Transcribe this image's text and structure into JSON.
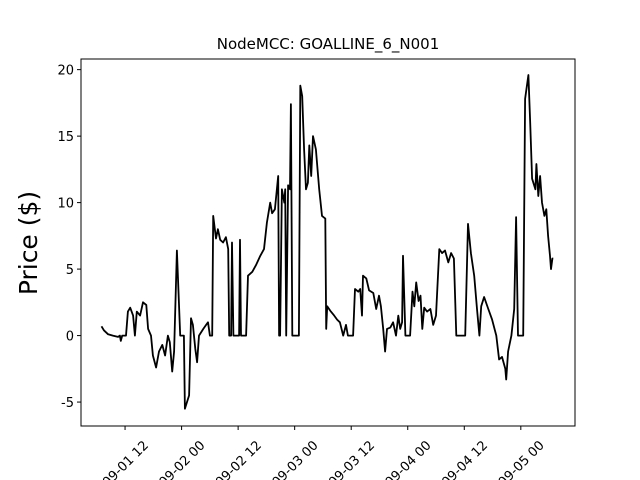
{
  "chart_data": {
    "type": "line",
    "title": "NodeMCC: GOALLINE_6_N001",
    "y_label": "Price ($)",
    "color": "#000000",
    "x": [
      7.0,
      7.5,
      8.4,
      9.4,
      10.5,
      10.9,
      11.1,
      11.4,
      12.2,
      12.6,
      13.1,
      13.7,
      14.1,
      14.5,
      15.2,
      15.8,
      16.5,
      16.9,
      17.5,
      17.9,
      18.6,
      19.2,
      19.9,
      20.5,
      21.1,
      21.5,
      22.0,
      22.4,
      23.0,
      23.7,
      24.5,
      24.7,
      25.6,
      26.0,
      26.4,
      26.9,
      27.3,
      27.7,
      28.6,
      29.2,
      29.6,
      30.0,
      30.5,
      30.7,
      31.3,
      31.7,
      32.2,
      32.8,
      33.4,
      33.9,
      34.1,
      34.5,
      34.7,
      35.0,
      36.2,
      36.4,
      36.6,
      37.7,
      38.1,
      39.0,
      39.8,
      40.7,
      41.5,
      42.1,
      42.8,
      43.2,
      43.8,
      44.5,
      44.7,
      44.9,
      45.3,
      45.8,
      46.0,
      46.2,
      46.6,
      47.0,
      47.2,
      47.5,
      48.9,
      49.2,
      49.6,
      50.0,
      50.4,
      50.8,
      51.1,
      51.5,
      51.9,
      52.5,
      53.2,
      53.8,
      54.5,
      54.7,
      54.9,
      55.7,
      56.4,
      57.0,
      57.6,
      58.3,
      58.9,
      59.3,
      60.4,
      60.8,
      61.5,
      61.9,
      62.3,
      62.5,
      63.2,
      63.8,
      64.7,
      65.3,
      65.9,
      66.3,
      66.8,
      67.2,
      67.6,
      68.3,
      68.9,
      69.5,
      70.0,
      70.4,
      70.8,
      71.0,
      71.5,
      72.5,
      73.0,
      73.4,
      73.8,
      74.3,
      74.7,
      75.1,
      75.5,
      76.1,
      76.8,
      77.4,
      78.0,
      78.7,
      79.3,
      79.9,
      80.6,
      81.2,
      81.8,
      82.3,
      84.2,
      84.8,
      85.4,
      86.1,
      86.7,
      87.2,
      87.6,
      88.2,
      89.1,
      89.9,
      90.8,
      91.4,
      92.0,
      92.7,
      92.9,
      93.3,
      94.0,
      94.6,
      95.0,
      95.4,
      96.5,
      96.9,
      97.6,
      98.0,
      98.4,
      99.1,
      99.3,
      99.7,
      100.1,
      100.5,
      101.0,
      101.4,
      101.8,
      102.2,
      102.4,
      102.7,
      102.9
    ],
    "values": [
      0.7,
      0.4,
      0.1,
      0,
      -0.1,
      0,
      -0.4,
      0,
      0,
      1.8,
      2.1,
      1.5,
      0,
      1.8,
      1.5,
      2.5,
      2.3,
      0.5,
      0,
      -1.5,
      -2.4,
      -1.2,
      -0.7,
      -1.5,
      0,
      -0.5,
      -2.7,
      -1.2,
      6.4,
      0,
      0,
      -5.5,
      -4.5,
      1.3,
      0.8,
      -1,
      -2,
      0,
      0.5,
      0.8,
      1,
      0,
      0,
      9,
      7.3,
      8,
      7.2,
      7,
      7.4,
      6.5,
      0,
      0,
      7,
      0,
      0,
      7.2,
      0,
      0,
      4.5,
      4.8,
      5.3,
      6,
      6.5,
      8.5,
      10,
      9.2,
      9.5,
      12,
      0,
      0,
      11,
      10,
      11,
      0,
      11.3,
      11,
      17.4,
      0,
      0,
      18.8,
      18,
      14,
      11,
      11.5,
      14.3,
      12,
      15,
      14,
      11,
      9,
      8.8,
      0.5,
      2.2,
      1.8,
      1.5,
      1.2,
      1,
      0,
      0.8,
      0,
      0,
      3.5,
      3.3,
      3.5,
      1.5,
      4.5,
      4.3,
      3.4,
      3.2,
      2,
      3,
      2.2,
      0.5,
      -1.2,
      0.5,
      0.6,
      1,
      0,
      1.5,
      0.5,
      1,
      6,
      0,
      0,
      3.3,
      2.2,
      4,
      2.6,
      3,
      0.5,
      2.1,
      1.8,
      2,
      0.8,
      1.5,
      6.5,
      6.2,
      6.4,
      5.5,
      6.2,
      5.8,
      0,
      0,
      8.4,
      6.2,
      4.5,
      2,
      0,
      2.2,
      2.9,
      2,
      1.2,
      0,
      -1.8,
      -1.6,
      -2.5,
      -3.3,
      -1.2,
      0,
      2,
      8.9,
      0,
      0,
      17.8,
      19.6,
      16,
      11.8,
      11,
      12.9,
      10.5,
      12,
      10,
      9,
      9.5,
      7.5,
      6,
      5,
      5.8,
      5.8
    ],
    "xlim": [
      2.65,
      107.5
    ],
    "xticks": [
      {
        "value": 12,
        "label": "09-01 12"
      },
      {
        "value": 24,
        "label": "09-02 00"
      },
      {
        "value": 36,
        "label": "09-02 12"
      },
      {
        "value": 48,
        "label": "09-03 00"
      },
      {
        "value": 60,
        "label": "09-03 12"
      },
      {
        "value": 72,
        "label": "09-04 00"
      },
      {
        "value": 84,
        "label": "09-04 12"
      },
      {
        "value": 96,
        "label": "09-05 00"
      }
    ],
    "ylim": [
      -6.8,
      20.8
    ],
    "yticks": [
      -5,
      0,
      5,
      10,
      15,
      20
    ]
  }
}
